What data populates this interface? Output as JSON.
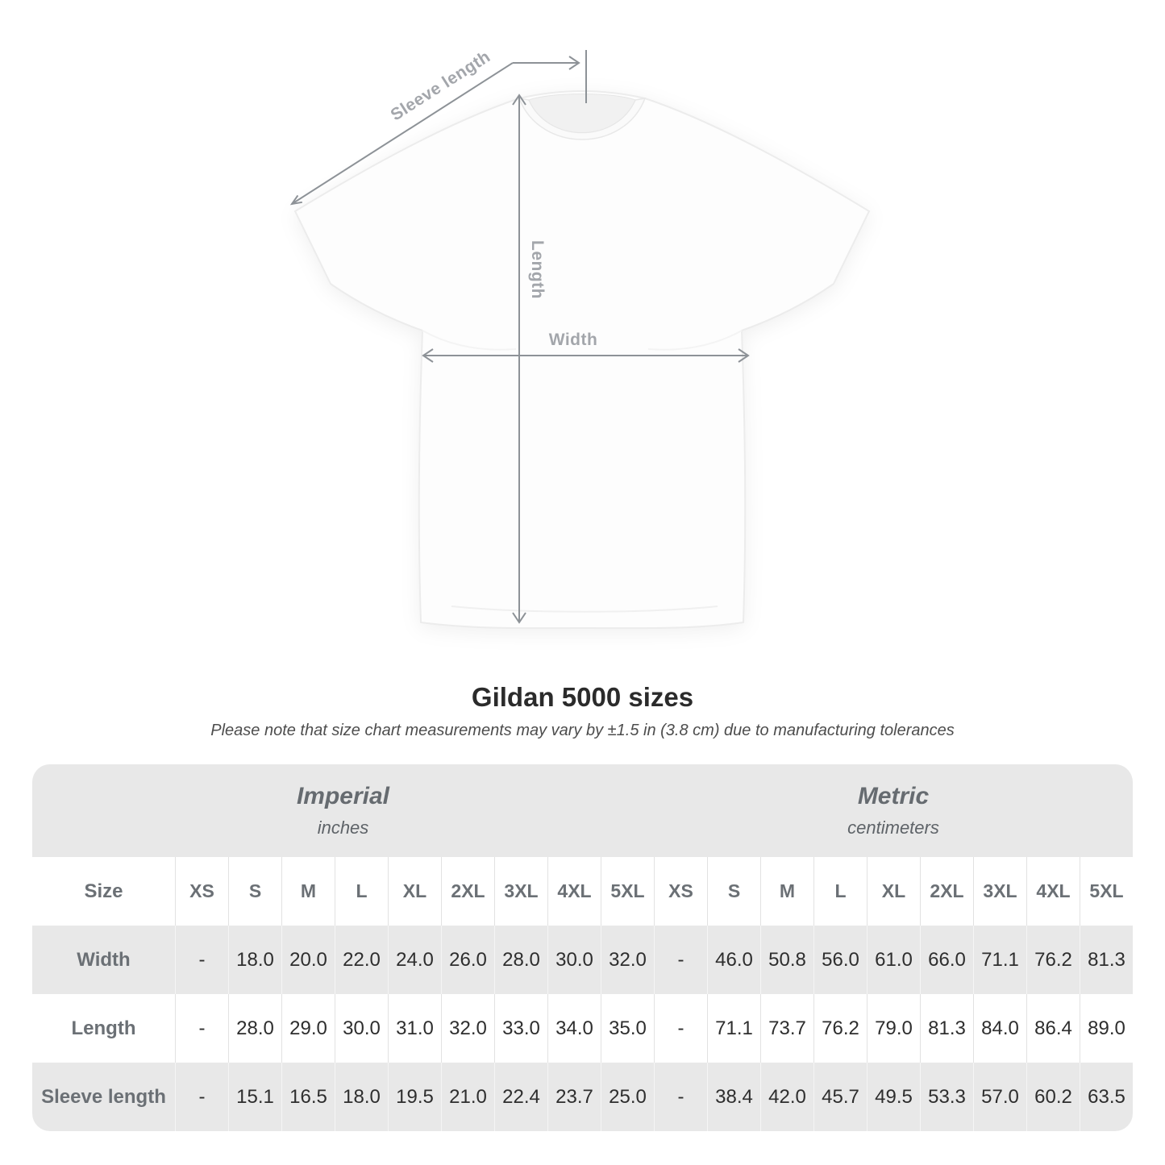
{
  "diagram": {
    "sleeve_length_label": "Sleeve length",
    "length_label": "Length",
    "width_label": "Width"
  },
  "header": {
    "title": "Gildan 5000 sizes",
    "subtitle": "Please note that size chart measurements may vary by ±1.5 in (3.8 cm) due to manufacturing tolerances"
  },
  "chart_data": {
    "type": "table",
    "title": "Gildan 5000 sizes",
    "column_groups": [
      {
        "label": "Imperial",
        "unit": "inches",
        "span": 9
      },
      {
        "label": "Metric",
        "unit": "centimeters",
        "span": 9
      }
    ],
    "header_row": [
      "Size",
      "XS",
      "S",
      "M",
      "L",
      "XL",
      "2XL",
      "3XL",
      "4XL",
      "5XL",
      "XS",
      "S",
      "M",
      "L",
      "XL",
      "2XL",
      "3XL",
      "4XL",
      "5XL"
    ],
    "rows": [
      {
        "label": "Width",
        "values": [
          "-",
          "18.0",
          "20.0",
          "22.0",
          "24.0",
          "26.0",
          "28.0",
          "30.0",
          "32.0",
          "-",
          "46.0",
          "50.8",
          "56.0",
          "61.0",
          "66.0",
          "71.1",
          "76.2",
          "81.3"
        ]
      },
      {
        "label": "Length",
        "values": [
          "-",
          "28.0",
          "29.0",
          "30.0",
          "31.0",
          "32.0",
          "33.0",
          "34.0",
          "35.0",
          "-",
          "71.1",
          "73.7",
          "76.2",
          "79.0",
          "81.3",
          "84.0",
          "86.4",
          "89.0"
        ]
      },
      {
        "label": "Sleeve length",
        "values": [
          "-",
          "15.1",
          "16.5",
          "18.0",
          "19.5",
          "21.0",
          "22.4",
          "23.7",
          "25.0",
          "-",
          "38.4",
          "42.0",
          "45.7",
          "49.5",
          "53.3",
          "57.0",
          "60.2",
          "63.5"
        ]
      }
    ]
  },
  "colors": {
    "band_gray": "#e8e8e8",
    "header_text": "#6b7075",
    "value_text": "#2e2e2e",
    "annotation_line": "#8d9297",
    "annotation_label": "#a3a6ab"
  }
}
